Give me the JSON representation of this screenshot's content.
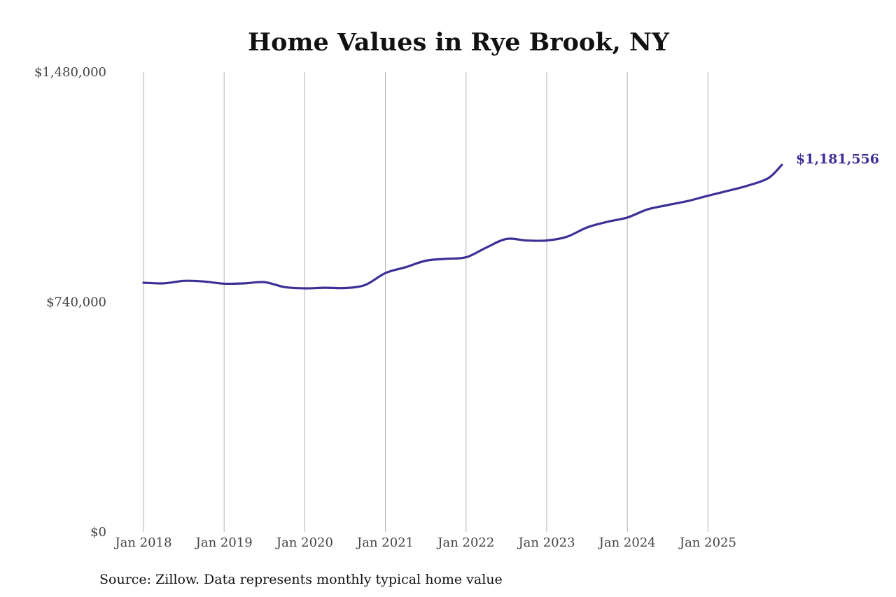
{
  "chart_data": {
    "type": "line",
    "title": "Home Values in Rye Brook, NY",
    "source": "Source: Zillow. Data represents monthly typical home value",
    "xlabel": "",
    "ylabel": "",
    "x_ticks": [
      "Jan 2018",
      "Jan 2019",
      "Jan 2020",
      "Jan 2021",
      "Jan 2022",
      "Jan 2023",
      "Jan 2024",
      "Jan 2025"
    ],
    "y_ticks": [
      "$0",
      "$740,000",
      "$1,480,000"
    ],
    "y_tick_values": [
      0,
      740000,
      1480000
    ],
    "ylim": [
      0,
      1480000
    ],
    "x_range": [
      "2018-01",
      "2025-10"
    ],
    "grid": "vertical gridlines at each January",
    "series": [
      {
        "color": "#3b3096",
        "end_label": "$1,181,556",
        "points": [
          [
            "2018-01",
            802000
          ],
          [
            "2018-04",
            800000
          ],
          [
            "2018-07",
            808000
          ],
          [
            "2018-10",
            806000
          ],
          [
            "2019-01",
            799000
          ],
          [
            "2019-04",
            800000
          ],
          [
            "2019-07",
            804000
          ],
          [
            "2019-10",
            788000
          ],
          [
            "2020-01",
            784000
          ],
          [
            "2020-04",
            786000
          ],
          [
            "2020-07",
            785000
          ],
          [
            "2020-10",
            795000
          ],
          [
            "2021-01",
            833000
          ],
          [
            "2021-04",
            852000
          ],
          [
            "2021-07",
            873000
          ],
          [
            "2021-10",
            879000
          ],
          [
            "2022-01",
            884000
          ],
          [
            "2022-04",
            915000
          ],
          [
            "2022-07",
            943000
          ],
          [
            "2022-10",
            938000
          ],
          [
            "2023-01",
            938000
          ],
          [
            "2023-04",
            950000
          ],
          [
            "2023-07",
            980000
          ],
          [
            "2023-10",
            998000
          ],
          [
            "2024-01",
            1012000
          ],
          [
            "2024-04",
            1038000
          ],
          [
            "2024-07",
            1052000
          ],
          [
            "2024-10",
            1065000
          ],
          [
            "2025-01",
            1082000
          ],
          [
            "2025-04",
            1098000
          ],
          [
            "2025-07",
            1115000
          ],
          [
            "2025-10",
            1139000
          ],
          [
            "2025-12",
            1181556
          ]
        ]
      }
    ]
  }
}
